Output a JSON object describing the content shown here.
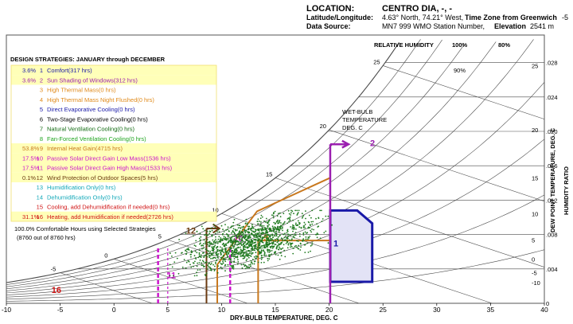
{
  "header": {
    "location_label": "LOCATION:",
    "location_value": "CENTRO DIA, -, -",
    "latlon_label": "Latitude/Longitude:",
    "latlon_value": "4.63° North, 74.21° West,",
    "timezone_label": "Time Zone from Greenwich",
    "timezone_value": "-5",
    "source_label": "Data Source:",
    "source_value": "MN7     999 WMO Station Number,",
    "elevation_label": "Elevation",
    "elevation_value": "2541 m"
  },
  "legend": {
    "title": "DESIGN STRATEGIES: JANUARY through DECEMBER",
    "items": [
      {
        "pct": "3.6%",
        "num": "1",
        "text": "Comfort(317 hrs)",
        "color": "#1a1aa8",
        "hl": true
      },
      {
        "pct": "3.6%",
        "num": "2",
        "text": "Sun Shading of Windows(312 hrs)",
        "color": "#9b1fb0",
        "hl": true
      },
      {
        "pct": "",
        "num": "3",
        "text": "High Thermal Mass(0 hrs)",
        "color": "#e08a1a",
        "hl": false
      },
      {
        "pct": "",
        "num": "4",
        "text": "High Thermal Mass Night Flushed(0 hrs)",
        "color": "#e08a1a",
        "hl": false
      },
      {
        "pct": "",
        "num": "5",
        "text": "Direct Evaporative Cooling(0 hrs)",
        "color": "#1a1aa8",
        "hl": false
      },
      {
        "pct": "",
        "num": "6",
        "text": "Two-Stage Evaporative Cooling(0 hrs)",
        "color": "#000000",
        "hl": false
      },
      {
        "pct": "",
        "num": "7",
        "text": "Natural Ventilation Cooling(0 hrs)",
        "color": "#136b13",
        "hl": false
      },
      {
        "pct": "",
        "num": "8",
        "text": "Fan-Forced Ventilation Cooling(0 hrs)",
        "color": "#1fa51f",
        "hl": false
      },
      {
        "pct": "53.8%",
        "num": "9",
        "text": "Internal Heat Gain(4715 hrs)",
        "color": "#c8781e",
        "hl": true
      },
      {
        "pct": "17.5%",
        "num": "10",
        "text": "Passive Solar Direct Gain Low Mass(1536 hrs)",
        "color": "#cc14cc",
        "hl": true
      },
      {
        "pct": "17.5%",
        "num": "11",
        "text": "Passive Solar Direct Gain High Mass(1533 hrs)",
        "color": "#cc14cc",
        "hl": true
      },
      {
        "pct": "0.1%",
        "num": "12",
        "text": "Wind Protection of Outdoor Spaces(5 hrs)",
        "color": "#6b3a10",
        "hl": true
      },
      {
        "pct": "",
        "num": "13",
        "text": "Humidification Only(0 hrs)",
        "color": "#12a8b8",
        "hl": false
      },
      {
        "pct": "",
        "num": "14",
        "text": "Dehumidification Only(0 hrs)",
        "color": "#12a8b8",
        "hl": false
      },
      {
        "pct": "",
        "num": "15",
        "text": "Cooling, add Dehumidification if needed(0 hrs)",
        "color": "#d01414",
        "hl": false
      },
      {
        "pct": "31.1%",
        "num": "16",
        "text": "Heating, add Humidification if needed(2726 hrs)",
        "color": "#d01414",
        "hl": true
      }
    ],
    "summary_line1": "100.0%   Comfortable Hours using Selected Strategies",
    "summary_line2": "(8760 out of 8760 hrs)"
  },
  "chart_data": {
    "type": "scatter",
    "xlabel": "DRY-BULB TEMPERATURE, DEG. C",
    "x_ticks": [
      -10,
      -5,
      0,
      5,
      10,
      15,
      20,
      25,
      30,
      35,
      40
    ],
    "xlim": [
      -10,
      40
    ],
    "right_axis_label": "HUMIDITY RATIO",
    "humidity_ratio_ticks": [
      ".028",
      ".024",
      ".020",
      ".016",
      ".012",
      ".008",
      ".004",
      "0"
    ],
    "humidity_ratio_values": [
      0.028,
      0.024,
      0.02,
      0.016,
      0.012,
      0.008,
      0.004,
      0
    ],
    "dewpoint_label": "DEW POINT TEMPERATURE, DEG. C",
    "dewpoint_ticks": [
      "30",
      "25",
      "20",
      "15",
      "10",
      "5",
      "0",
      "-5",
      "-10"
    ],
    "dewpoint_values": [
      30,
      25,
      20,
      15,
      10,
      5,
      0,
      -5,
      -10
    ],
    "rh_title": "RELATIVE HUMIDITY",
    "rh_header_labels": [
      "100%",
      "80%"
    ],
    "rh_curve_label": "90%",
    "rh_curves_pct": [
      10,
      20,
      30,
      40,
      50,
      60,
      70,
      80,
      90,
      100
    ],
    "wetbulb_title": [
      "WET-BULB",
      "TEMPERATURE",
      "DEG. C"
    ],
    "wetbulb_ticks": [
      -5,
      0,
      5,
      10,
      15,
      20,
      25,
      30
    ],
    "zone_labels": [
      "1",
      "2",
      "9",
      "10",
      "11",
      "12",
      "16"
    ],
    "scatter_cloud": {
      "hours": 8760,
      "x_range": [
        4,
        21
      ],
      "w_range": [
        0.0032,
        0.0108
      ]
    }
  },
  "colors": {
    "comfort": "#1a1aa8",
    "comfort_fill": "#e3e3f6",
    "sun_shading": "#9b1fb0",
    "internal_gain": "#c8781e",
    "passive_solar": "#cc14cc",
    "wind": "#6b3a10",
    "heating": "#d01414",
    "points": "#1f7a1f",
    "grid": "#4a4a4a",
    "highlight_bg": "#ffffb8"
  }
}
